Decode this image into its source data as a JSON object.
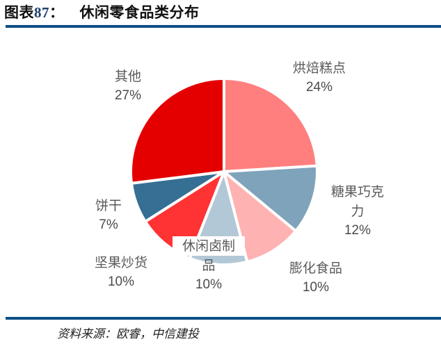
{
  "figure": {
    "label": "图表",
    "number": "87",
    "colon": "：",
    "title": "休闲零食品类分布"
  },
  "source": "资料来源：欧睿，中信建投",
  "chart_data": {
    "type": "pie",
    "title": "休闲零食品类分布",
    "start_angle_deg": 0,
    "direction": "clockwise",
    "slices": [
      {
        "name": "烘焙糕点",
        "value": 24,
        "label": "24%",
        "color": "#ff7f7f"
      },
      {
        "name": "糖果巧克力",
        "value": 12,
        "label": "12%",
        "color": "#7fa3bb"
      },
      {
        "name": "膨化食品",
        "value": 10,
        "label": "10%",
        "color": "#ffb2b2"
      },
      {
        "name": "休闲卤制品",
        "value": 10,
        "label": "10%",
        "color": "#b3c8d6"
      },
      {
        "name": "坚果炒货",
        "value": 10,
        "label": "10%",
        "color": "#ff3333"
      },
      {
        "name": "饼干",
        "value": 7,
        "label": "7%",
        "color": "#366f94"
      },
      {
        "name": "其他",
        "value": 27,
        "label": "27%",
        "color": "#e50000"
      }
    ]
  },
  "labels": {
    "hongbei": {
      "line1": "烘焙糕点",
      "pct": "24%"
    },
    "tangguo": {
      "line1": "糖果巧克",
      "line2": "力",
      "pct": "12%"
    },
    "penghua": {
      "line1": "膨化食品",
      "pct": "10%"
    },
    "luzhi": {
      "line1": "休闲卤制",
      "line2": "品",
      "pct": "10%"
    },
    "jianguo": {
      "line1": "坚果炒货",
      "pct": "10%"
    },
    "binggan": {
      "line1": "饼干",
      "pct": "7%"
    },
    "qita": {
      "line1": "其他",
      "pct": "27%"
    }
  }
}
